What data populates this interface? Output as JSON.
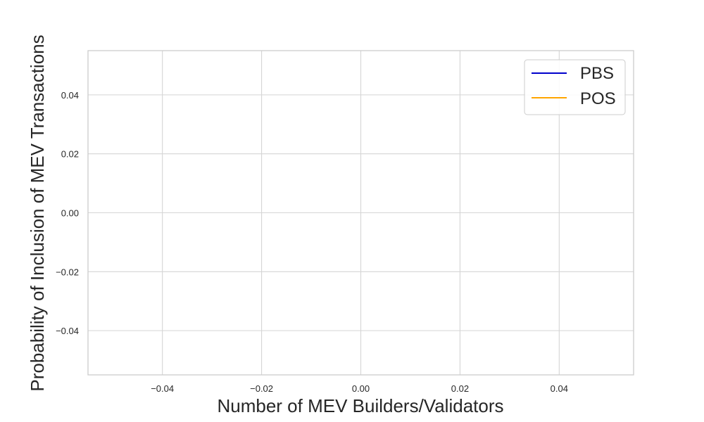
{
  "chart_data": {
    "type": "line",
    "title": "",
    "xlabel": "Number of MEV Builders/Validators",
    "ylabel": "Probability of Inclusion of MEV Transactions",
    "xlim": [
      -0.055,
      0.055
    ],
    "ylim": [
      -0.055,
      0.055
    ],
    "xticks": [
      -0.04,
      -0.02,
      0.0,
      0.02,
      0.04
    ],
    "yticks": [
      -0.04,
      -0.02,
      0.0,
      0.02,
      0.04
    ],
    "xtick_labels": [
      "−0.04",
      "−0.02",
      "0.00",
      "0.02",
      "0.04"
    ],
    "ytick_labels": [
      "−0.04",
      "−0.02",
      "0.00",
      "0.02",
      "0.04"
    ],
    "grid": true,
    "legend_position": "top-right",
    "series": [
      {
        "name": "PBS",
        "color": "#0000cc",
        "x": [],
        "y": []
      },
      {
        "name": "POS",
        "color": "#ffa500",
        "x": [],
        "y": []
      }
    ]
  }
}
